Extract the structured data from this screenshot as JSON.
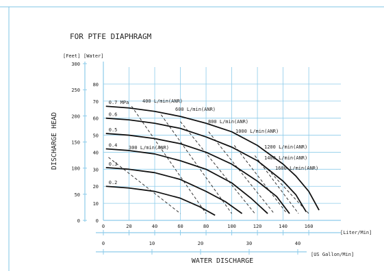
{
  "chart_data": {
    "type": "line",
    "title": "FOR PTFE DIAPHRAGM",
    "ylabel": "DISCHARGE HEAD",
    "xlabel": "WATER DISCHARGE",
    "y_unit_feet": "[Feet]",
    "y_unit_water": "[Water]",
    "x_unit_liter": "[Liter/Min]",
    "x_unit_gallon": "[US Gallon/Min]",
    "xlim": [
      0,
      185
    ],
    "ylim": [
      0,
      90
    ],
    "x_ticks": [
      0,
      20,
      40,
      60,
      80,
      100,
      120,
      140,
      160
    ],
    "x_tick_labels": [
      "0",
      "20",
      "40",
      "60",
      "80",
      "100",
      "120",
      "140",
      "160"
    ],
    "y_ticks": [
      0,
      10,
      20,
      30,
      40,
      50,
      60,
      70,
      80
    ],
    "y_tick_labels": [
      "0",
      "10",
      "20",
      "30",
      "40",
      "50",
      "60",
      "70",
      "80"
    ],
    "feet_ticks": [
      0,
      50,
      100,
      150,
      200,
      250,
      300
    ],
    "feet_tick_labels": [
      "0",
      "50",
      "100",
      "150",
      "200",
      "250",
      "300"
    ],
    "gallon_ticks": [
      0,
      10,
      20,
      30,
      40
    ],
    "gallon_tick_labels": [
      "0",
      "10",
      "20",
      "30",
      "40"
    ],
    "grid": true,
    "series": [
      {
        "name": "0.7 MPa",
        "x": [
          2,
          20,
          40,
          60,
          80,
          100,
          120,
          140,
          150,
          160,
          168
        ],
        "y": [
          67,
          66,
          64,
          61,
          57,
          52,
          44,
          33,
          26,
          17,
          6
        ]
      },
      {
        "name": "0.6",
        "x": [
          2,
          20,
          40,
          60,
          80,
          100,
          120,
          140,
          150,
          158
        ],
        "y": [
          60,
          59,
          57,
          54,
          49,
          43,
          35,
          23,
          15,
          5
        ]
      },
      {
        "name": "0.5",
        "x": [
          2,
          20,
          40,
          60,
          80,
          100,
          120,
          135,
          145
        ],
        "y": [
          51,
          50,
          48,
          45,
          40,
          33,
          23,
          14,
          4
        ]
      },
      {
        "name": "0.4",
        "x": [
          2,
          20,
          40,
          60,
          80,
          100,
          115,
          128
        ],
        "y": [
          42,
          41,
          39,
          35,
          30,
          22,
          13,
          4
        ]
      },
      {
        "name": "0.3",
        "x": [
          2,
          20,
          40,
          60,
          80,
          95,
          108
        ],
        "y": [
          31,
          30,
          28,
          24,
          17,
          11,
          4
        ]
      },
      {
        "name": "0.2",
        "x": [
          2,
          20,
          40,
          60,
          75,
          87
        ],
        "y": [
          20,
          19,
          17,
          13,
          8,
          3
        ]
      }
    ],
    "air_lines": [
      {
        "name": "300 L/min(ANR)",
        "x": [
          4,
          60
        ],
        "y": [
          37,
          4
        ]
      },
      {
        "name": "400 L/min(ANR)",
        "x": [
          22,
          80
        ],
        "y": [
          67,
          4
        ]
      },
      {
        "name": "600 L/min(ANR)",
        "x": [
          45,
          100
        ],
        "y": [
          62,
          4
        ]
      },
      {
        "name": "800 L/min(ANR)",
        "x": [
          60,
          118
        ],
        "y": [
          58,
          4
        ]
      },
      {
        "name": "1000 L/min(ANR)",
        "x": [
          82,
          133
        ],
        "y": [
          52,
          4
        ]
      },
      {
        "name": "1200 L/min(ANR)",
        "x": [
          102,
          143
        ],
        "y": [
          44,
          4
        ]
      },
      {
        "name": "1400 L/min(ANR)",
        "x": [
          118,
          152
        ],
        "y": [
          38,
          4
        ]
      },
      {
        "name": "1600 L/min(ANR)",
        "x": [
          128,
          160
        ],
        "y": [
          30,
          4
        ]
      }
    ]
  }
}
